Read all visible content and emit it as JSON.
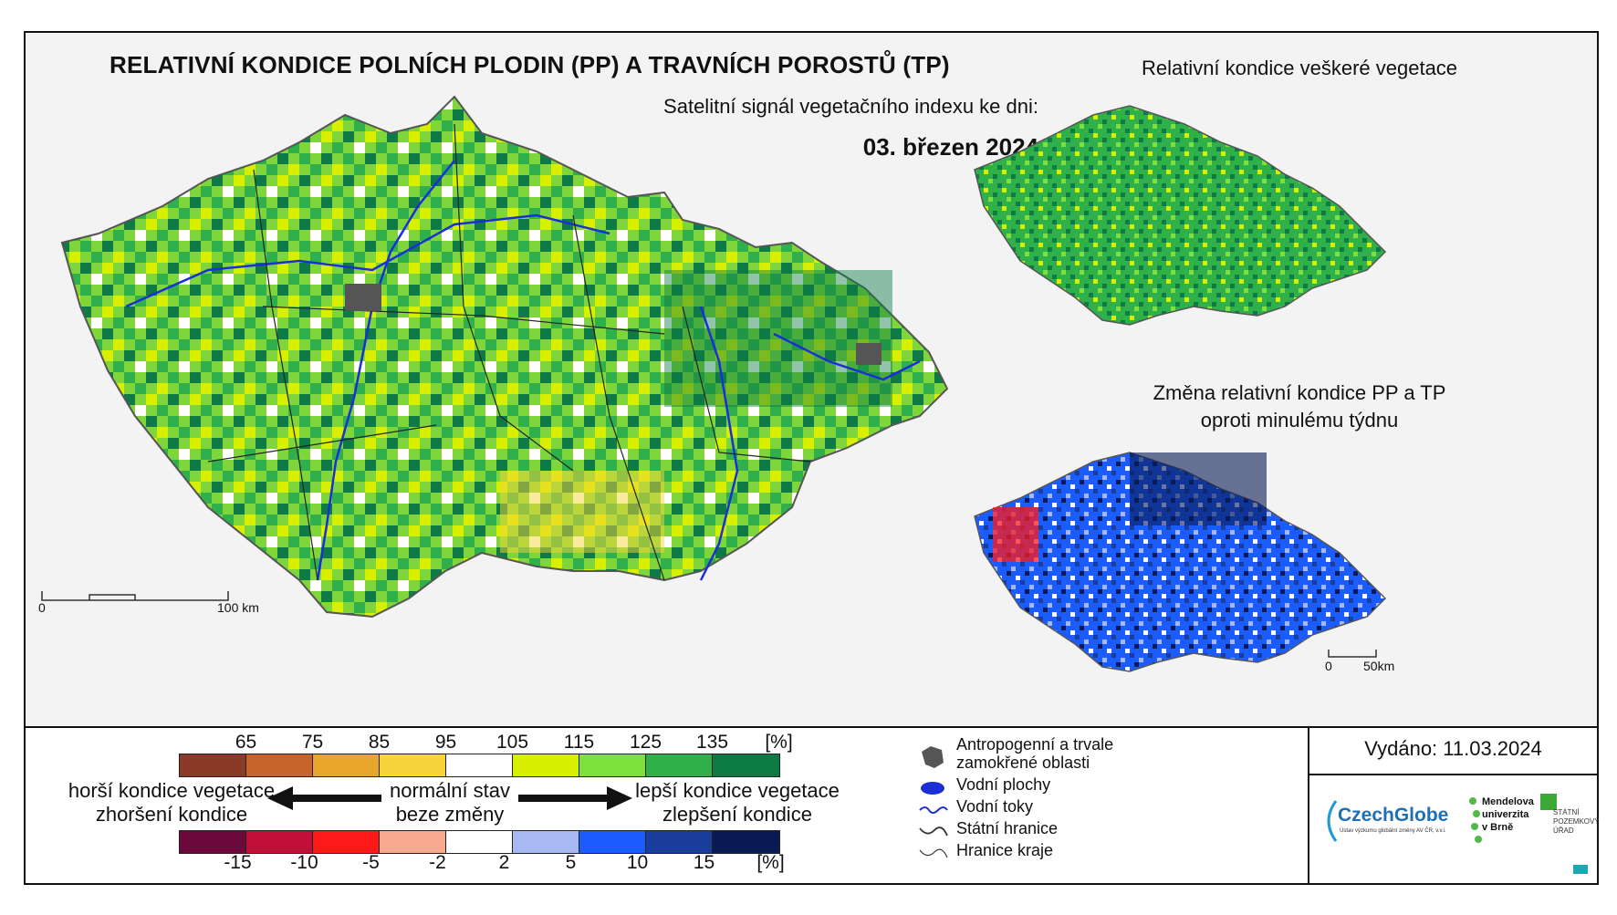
{
  "header": {
    "title": "RELATIVNÍ KONDICE POLNÍCH PLODIN (PP) A TRAVNÍCH POROSTŮ (TP)",
    "subtitle": "Satelitní signál vegetačního indexu ke dni:",
    "date": "03. březen 2024"
  },
  "inset_top": {
    "title": "Relativní kondice veškeré vegetace"
  },
  "inset_bottom": {
    "title_line1": "Změna relativní kondice PP a TP",
    "title_line2": "oproti minulému týdnu"
  },
  "scalebars": {
    "main": {
      "start": "0",
      "end": "100 km"
    },
    "inset": {
      "start": "0",
      "end": "50km"
    }
  },
  "legend": {
    "condition_ticks": [
      "65",
      "75",
      "85",
      "95",
      "105",
      "115",
      "125",
      "135",
      "[%]"
    ],
    "condition_colors": [
      "#8b3a2a",
      "#c8642a",
      "#e8a62a",
      "#f7d43a",
      "#ffffff",
      "#d7f000",
      "#7ee03a",
      "#2fb04a",
      "#0e7a45"
    ],
    "change_ticks": [
      "-15",
      "-10",
      "-5",
      "-2",
      "2",
      "5",
      "10",
      "15",
      "[%]"
    ],
    "change_colors": [
      "#6b0a3a",
      "#c0103a",
      "#ff1a1a",
      "#f8a98f",
      "#ffffff",
      "#a7b8f2",
      "#1a5cff",
      "#1a3c9a",
      "#0a1a55"
    ],
    "worse_line1": "horší kondice vegetace",
    "worse_line2": "zhoršení kondice",
    "normal_line1": "normální stav",
    "normal_line2": "beze změny",
    "better_line1": "lepší kondice vegetace",
    "better_line2": "zlepšení kondice",
    "symbols": {
      "anthropogenic_line1": "Antropogenní a trvale",
      "anthropogenic_line2": "zamokřené oblasti",
      "water_areas": "Vodní plochy",
      "water_flows": "Vodní toky",
      "state_border": "Státní hranice",
      "region_border": "Hranice kraje"
    }
  },
  "issued": "Vydáno: 11.03.2024",
  "logos": {
    "czechglobe": "CzechGlobe",
    "czechglobe_sub": "Ústav výzkumu globální změny AV ČR, v.v.i.",
    "mendel_line1": "Mendelova",
    "mendel_line2": "univerzita",
    "mendel_line3": "v Brně",
    "spu_line1": "STÁTNÍ",
    "spu_line2": "POZEMKOVÝ",
    "spu_line3": "ÚŘAD"
  }
}
